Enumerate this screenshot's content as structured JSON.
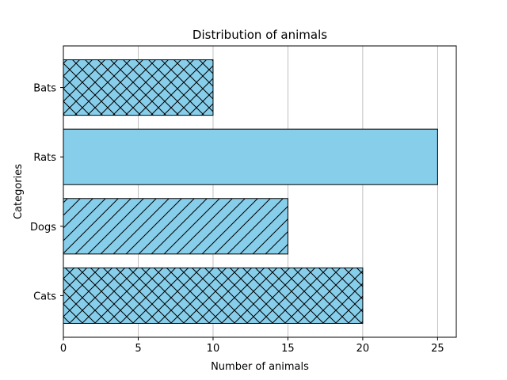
{
  "chart_data": {
    "type": "bar",
    "orientation": "horizontal",
    "title": "Distribution of animals",
    "xlabel": "Number of animals",
    "ylabel": "Categories",
    "categories": [
      "Cats",
      "Dogs",
      "Rats",
      "Bats"
    ],
    "values": [
      20,
      15,
      25,
      10
    ],
    "hatches": [
      "crosshatch",
      "diagonal",
      "none",
      "crosshatch"
    ],
    "xlim": [
      0,
      26.25
    ],
    "xticks": [
      0,
      5,
      10,
      15,
      20,
      25
    ],
    "grid": "x",
    "bar_color": "#87CEEB",
    "edge_color": "#000000",
    "grid_color": "#b0b0b0"
  }
}
